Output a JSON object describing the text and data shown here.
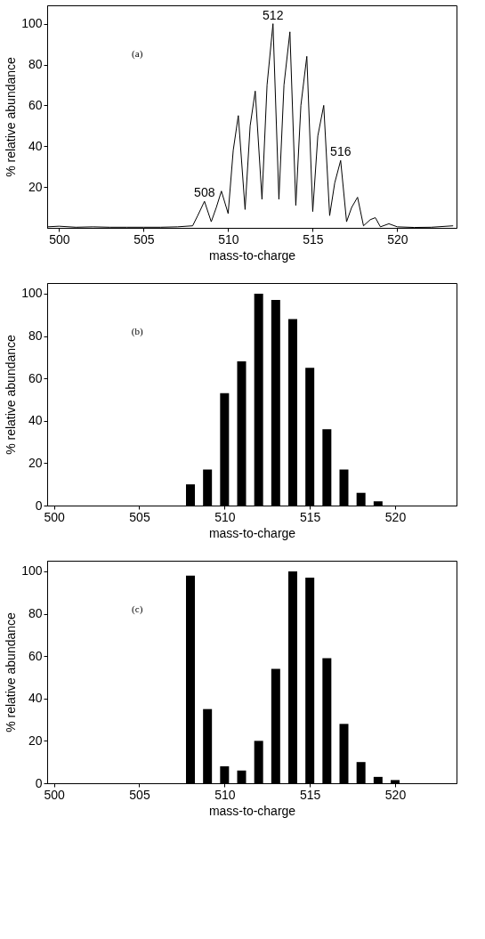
{
  "chart_data": [
    {
      "type": "line",
      "xlabel": "mass-to-charge",
      "ylabel": "% relative abundance",
      "xlim": [
        499.3,
        523.5
      ],
      "ylim": [
        0,
        109
      ],
      "xticks": [
        500,
        505,
        510,
        515,
        520
      ],
      "yticks": [
        20,
        40,
        60,
        80,
        100
      ],
      "grid": false,
      "x": [
        499.3,
        500,
        501,
        502,
        503,
        504,
        505,
        506,
        507,
        507.9,
        508.2,
        508.6,
        509.0,
        509.3,
        509.6,
        510.0,
        510.3,
        510.6,
        511.0,
        511.3,
        511.6,
        512.0,
        512.3,
        512.65,
        513.0,
        513.3,
        513.65,
        514.0,
        514.3,
        514.65,
        515.0,
        515.3,
        515.65,
        516.0,
        516.3,
        516.65,
        517.0,
        517.3,
        517.65,
        518.0,
        518.4,
        518.7,
        519.0,
        519.5,
        520.0,
        521,
        522,
        523.3
      ],
      "series": [
        {
          "color": "#000000",
          "values": [
            0.5,
            0.8,
            0.3,
            0.5,
            0.3,
            0.3,
            0.3,
            0.3,
            0.5,
            1,
            6,
            13,
            3,
            10,
            18,
            7,
            38,
            55,
            9,
            50,
            67,
            14,
            70,
            100,
            14,
            70,
            96,
            11,
            60,
            84,
            8,
            45,
            60,
            6,
            22,
            33,
            3,
            10,
            15,
            1,
            4,
            5,
            0.5,
            2,
            0.5,
            0.2,
            0.3,
            1
          ]
        }
      ],
      "annotations": [
        "(a)",
        {
          "text": "508",
          "x": 508.6,
          "y": 13
        },
        {
          "text": "512",
          "x": 512.65,
          "y": 100
        },
        {
          "text": "516",
          "x": 516.65,
          "y": 33
        }
      ]
    },
    {
      "type": "bar",
      "xlabel": "mass-to-charge",
      "ylabel": "% relative abundance",
      "xlim": [
        499.6,
        523.6
      ],
      "ylim": [
        0,
        105
      ],
      "xticks": [
        500,
        505,
        510,
        515,
        520
      ],
      "yticks": [
        0,
        20,
        40,
        60,
        80,
        100
      ],
      "grid": false,
      "x": [
        508,
        509,
        510,
        511,
        512,
        513,
        514,
        515,
        516,
        517,
        518,
        519
      ],
      "series": [
        {
          "color": "#000000",
          "values": [
            10,
            17,
            53,
            68,
            100,
            97,
            88,
            65,
            36,
            17,
            6,
            2
          ]
        }
      ],
      "annotations": [
        "(b)"
      ]
    },
    {
      "type": "bar",
      "xlabel": "mass-to-charge",
      "ylabel": "% relative abundance",
      "xlim": [
        499.6,
        523.6
      ],
      "ylim": [
        0,
        105
      ],
      "xticks": [
        500,
        505,
        510,
        515,
        520
      ],
      "yticks": [
        0,
        20,
        40,
        60,
        80,
        100
      ],
      "grid": false,
      "x": [
        508,
        509,
        510,
        511,
        512,
        513,
        514,
        515,
        516,
        517,
        518,
        519,
        520
      ],
      "series": [
        {
          "color": "#000000",
          "values": [
            98,
            35,
            8,
            6,
            20,
            54,
            100,
            97,
            59,
            28,
            10,
            3,
            1.5
          ]
        }
      ],
      "annotations": [
        "(c)"
      ]
    }
  ]
}
